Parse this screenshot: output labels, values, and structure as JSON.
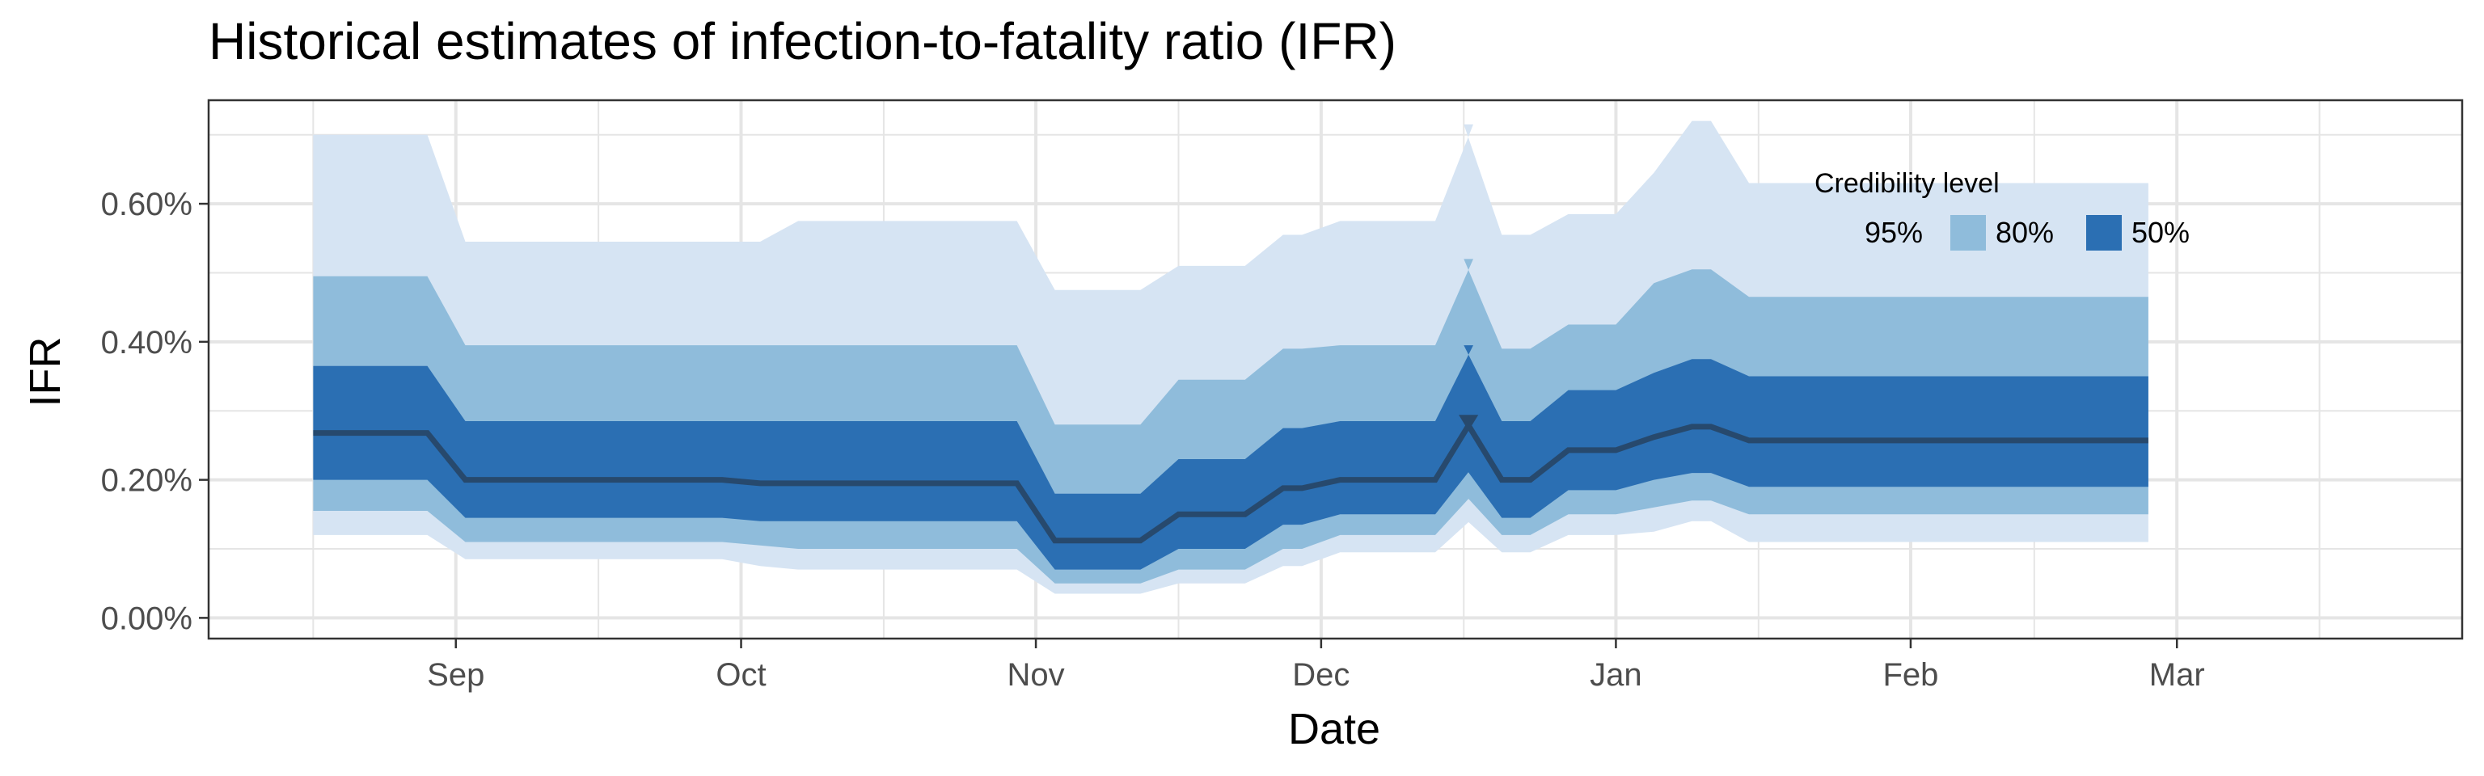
{
  "chart_data": {
    "type": "area",
    "title": "Historical estimates of infection-to-fatality ratio (IFR)",
    "xlabel": "Date",
    "ylabel": "IFR",
    "xlim": [
      "2020-08-06",
      "2021-03-31"
    ],
    "ylim": [
      -0.0003,
      0.0075
    ],
    "x_ticks": [
      {
        "date": "2020-09-01",
        "label": "Sep"
      },
      {
        "date": "2020-10-01",
        "label": "Oct"
      },
      {
        "date": "2020-11-01",
        "label": "Nov"
      },
      {
        "date": "2020-12-01",
        "label": "Dec"
      },
      {
        "date": "2021-01-01",
        "label": "Jan"
      },
      {
        "date": "2021-02-01",
        "label": "Feb"
      },
      {
        "date": "2021-03-01",
        "label": "Mar"
      }
    ],
    "x_minor_ticks": [
      "2020-08-17",
      "2020-09-16",
      "2020-10-16",
      "2020-11-16",
      "2020-12-16",
      "2021-01-16",
      "2021-02-14",
      "2021-03-16"
    ],
    "y_ticks": [
      {
        "value": 0.0,
        "label": "0.00%"
      },
      {
        "value": 0.002,
        "label": "0.20%"
      },
      {
        "value": 0.004,
        "label": "0.40%"
      },
      {
        "value": 0.006,
        "label": "0.60%"
      }
    ],
    "y_minor_ticks": [
      0.001,
      0.003,
      0.005,
      0.007
    ],
    "grid": true,
    "legend": {
      "title": "Credibility level",
      "placement": "top-right",
      "entries": [
        {
          "label": "95%",
          "color": "#d6e4f3"
        },
        {
          "label": "80%",
          "color": "#8fbcdb"
        },
        {
          "label": "50%",
          "color": "#2b6fb3"
        }
      ]
    },
    "colors": {
      "band95": "#d6e4f3",
      "band80": "#8fbcdb",
      "band50": "#2b6fb3",
      "median": "#27496d",
      "grid": "#e5e5e5",
      "axis_text": "#4d4d4d"
    },
    "x_dates": [
      "2020-08-17",
      "2020-08-29",
      "2020-09-29",
      "2020-10-03",
      "2020-10-30",
      "2020-11-12",
      "2020-11-23",
      "2020-11-29",
      "2020-12-13",
      "2020-12-16",
      "2020-12-23",
      "2021-01-01",
      "2021-01-05",
      "2021-01-11",
      "2021-02-14"
    ],
    "series": [
      {
        "name": "95%",
        "stat": "upper",
        "values": [
          0.007,
          0.00545,
          0.00545,
          0.00575,
          0.00475,
          0.0051,
          0.00555,
          0.00575,
          0.00715,
          0.00555,
          0.00585,
          0.00645,
          0.0072,
          0.0063,
          0.0063
        ]
      },
      {
        "name": "80%",
        "stat": "upper",
        "values": [
          0.00495,
          0.00395,
          0.00395,
          0.00395,
          0.0028,
          0.00345,
          0.0039,
          0.00395,
          0.0052,
          0.0039,
          0.00425,
          0.00485,
          0.00505,
          0.00465,
          0.00465
        ]
      },
      {
        "name": "50%",
        "stat": "upper",
        "values": [
          0.00365,
          0.00285,
          0.00285,
          0.00285,
          0.0018,
          0.0023,
          0.00275,
          0.00285,
          0.00395,
          0.00285,
          0.0033,
          0.00355,
          0.00375,
          0.0035,
          0.0035
        ]
      },
      {
        "name": "median",
        "stat": "median",
        "values": [
          0.00268,
          0.002,
          0.00195,
          0.00195,
          0.00112,
          0.0015,
          0.00188,
          0.002,
          0.0029,
          0.002,
          0.00243,
          0.00262,
          0.00277,
          0.00257,
          0.00257
        ]
      },
      {
        "name": "50%",
        "stat": "lower",
        "values": [
          0.002,
          0.00145,
          0.0014,
          0.0014,
          0.0007,
          0.001,
          0.00135,
          0.0015,
          0.0022,
          0.00145,
          0.00185,
          0.002,
          0.0021,
          0.0019,
          0.0019
        ]
      },
      {
        "name": "80%",
        "stat": "lower",
        "values": [
          0.00155,
          0.0011,
          0.00105,
          0.001,
          0.0005,
          0.0007,
          0.001,
          0.0012,
          0.0018,
          0.0012,
          0.0015,
          0.0016,
          0.0017,
          0.0015,
          0.0015
        ]
      },
      {
        "name": "95%",
        "stat": "lower",
        "values": [
          0.0012,
          0.00085,
          0.00075,
          0.0007,
          0.00035,
          0.0005,
          0.00075,
          0.00095,
          0.00145,
          0.00095,
          0.0012,
          0.00125,
          0.0014,
          0.0011,
          0.0011
        ]
      }
    ],
    "series_end": "2021-02-26"
  }
}
